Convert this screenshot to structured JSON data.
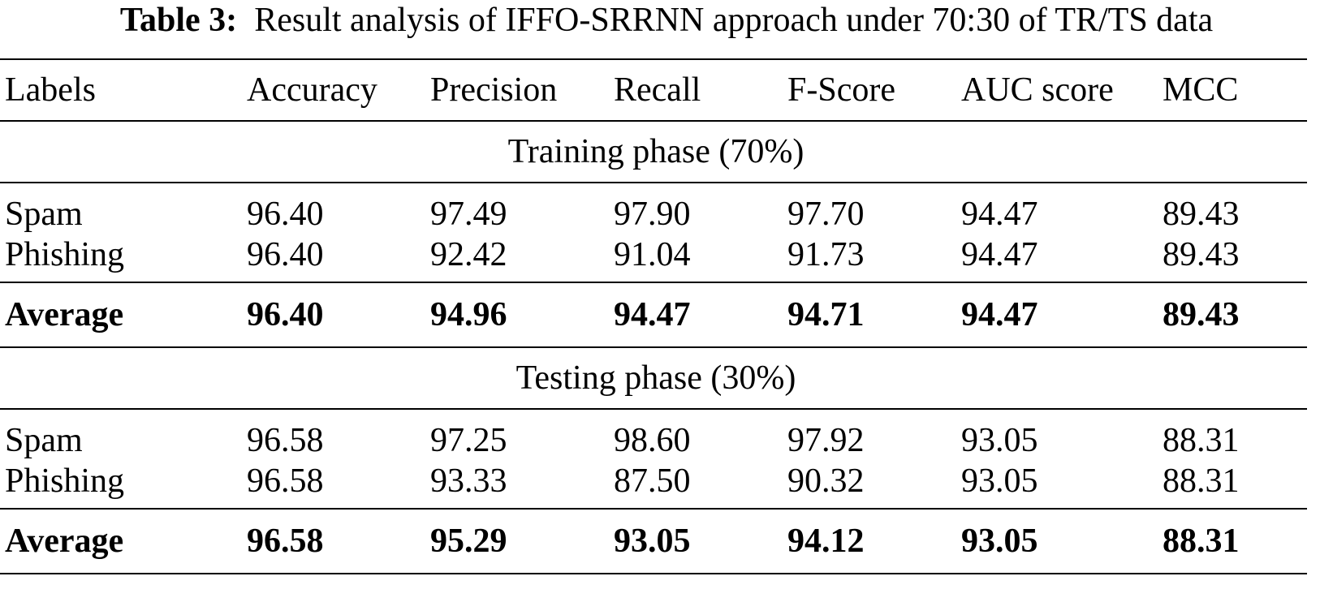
{
  "caption": {
    "label": "Table 3:",
    "text": "Result analysis of IFFO-SRRNN approach under 70:30 of TR/TS data"
  },
  "headers": [
    "Labels",
    "Accuracy",
    "Precision",
    "Recall",
    "F-Score",
    "AUC score",
    "MCC"
  ],
  "training": {
    "title": "Training phase (70%)",
    "rows": [
      [
        "Spam",
        "96.40",
        "97.49",
        "97.90",
        "97.70",
        "94.47",
        "89.43"
      ],
      [
        "Phishing",
        "96.40",
        "92.42",
        "91.04",
        "91.73",
        "94.47",
        "89.43"
      ]
    ],
    "average": [
      "Average",
      "96.40",
      "94.96",
      "94.47",
      "94.71",
      "94.47",
      "89.43"
    ]
  },
  "testing": {
    "title": "Testing phase (30%)",
    "rows": [
      [
        "Spam",
        "96.58",
        "97.25",
        "98.60",
        "97.92",
        "93.05",
        "88.31"
      ],
      [
        "Phishing",
        "96.58",
        "93.33",
        "87.50",
        "90.32",
        "93.05",
        "88.31"
      ]
    ],
    "average": [
      "Average",
      "96.58",
      "95.29",
      "93.05",
      "94.12",
      "93.05",
      "88.31"
    ]
  }
}
